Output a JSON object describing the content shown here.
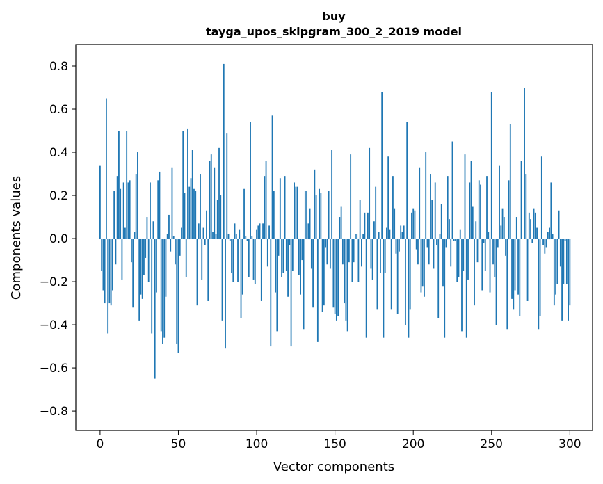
{
  "chart_data": {
    "type": "bar",
    "title": "buy",
    "subtitle": "tayga_upos_skipgram_300_2_2019 model",
    "xlabel": "Vector components",
    "ylabel": "Components values",
    "xlim": [
      -15.5,
      314.5
    ],
    "ylim": [
      -0.89,
      0.9
    ],
    "xticks": [
      0,
      50,
      100,
      150,
      200,
      250,
      300
    ],
    "xtick_labels": [
      "0",
      "50",
      "100",
      "150",
      "200",
      "250",
      "300"
    ],
    "yticks": [
      0.8,
      0.6,
      0.4,
      0.2,
      0.0,
      -0.2,
      -0.4,
      -0.6,
      -0.8
    ],
    "ytick_labels": [
      "0.8",
      "0.6",
      "0.4",
      "0.2",
      "0.0",
      "−0.2",
      "−0.4",
      "−0.6",
      "−0.8"
    ],
    "grid": false,
    "bar_color": "#1f77b4",
    "x_start": 0,
    "values": [
      0.34,
      -0.15,
      -0.24,
      -0.3,
      0.65,
      -0.44,
      -0.3,
      -0.31,
      -0.24,
      0.22,
      -0.12,
      0.29,
      0.5,
      0.23,
      -0.19,
      0.26,
      0.05,
      0.5,
      0.26,
      0.27,
      -0.11,
      -0.32,
      0.03,
      0.3,
      0.4,
      -0.38,
      -0.26,
      -0.28,
      -0.17,
      -0.09,
      0.1,
      -0.2,
      0.26,
      -0.44,
      0.08,
      -0.65,
      -0.25,
      0.27,
      0.31,
      -0.43,
      -0.49,
      -0.46,
      -0.27,
      0.02,
      0.11,
      -0.06,
      0.33,
      0.01,
      -0.12,
      -0.49,
      -0.53,
      -0.08,
      0.05,
      0.5,
      0.21,
      -0.18,
      0.51,
      0.24,
      0.28,
      0.41,
      0.23,
      0.22,
      -0.31,
      0.07,
      0.3,
      -0.19,
      0.05,
      -0.03,
      0.13,
      -0.29,
      0.36,
      0.39,
      0.03,
      0.33,
      0.02,
      0.18,
      0.42,
      0.2,
      -0.38,
      0.81,
      -0.51,
      0.49,
      0.02,
      -0.01,
      -0.16,
      -0.2,
      0.07,
      0.02,
      -0.2,
      0.04,
      -0.37,
      -0.26,
      0.23,
      0.01,
      -0.01,
      -0.18,
      0.54,
      0.01,
      -0.19,
      -0.21,
      0.04,
      0.06,
      0.07,
      -0.29,
      0.07,
      0.29,
      0.36,
      -0.13,
      0.06,
      -0.5,
      0.57,
      0.22,
      -0.25,
      -0.43,
      -0.08,
      0.28,
      -0.18,
      -0.16,
      0.29,
      -0.15,
      -0.27,
      -0.03,
      -0.5,
      -0.15,
      0.26,
      0.24,
      0.24,
      -0.17,
      -0.26,
      -0.1,
      -0.42,
      0.22,
      0.22,
      0.07,
      0.14,
      -0.14,
      -0.32,
      0.32,
      0.2,
      -0.48,
      0.23,
      0.21,
      -0.34,
      -0.31,
      -0.04,
      -0.12,
      0.22,
      -0.14,
      0.41,
      -0.32,
      -0.35,
      -0.38,
      -0.36,
      0.1,
      0.15,
      -0.12,
      -0.3,
      -0.38,
      -0.43,
      -0.11,
      0.39,
      -0.2,
      -0.11,
      0.02,
      0.02,
      -0.2,
      0.18,
      -0.13,
      0.02,
      0.12,
      -0.46,
      0.12,
      0.42,
      -0.14,
      -0.19,
      0.08,
      0.24,
      -0.33,
      0.03,
      -0.16,
      0.68,
      -0.46,
      -0.16,
      0.05,
      0.38,
      0.04,
      -0.33,
      0.29,
      0.14,
      -0.07,
      -0.35,
      -0.06,
      0.06,
      0.03,
      0.06,
      -0.4,
      0.54,
      -0.46,
      -0.33,
      0.12,
      0.14,
      0.13,
      -0.05,
      -0.12,
      0.33,
      -0.25,
      -0.22,
      -0.27,
      0.4,
      -0.04,
      -0.12,
      0.3,
      0.18,
      -0.14,
      0.26,
      -0.03,
      -0.37,
      0.02,
      0.16,
      -0.22,
      -0.46,
      -0.04,
      0.29,
      0.09,
      -0.13,
      0.45,
      -0.01,
      -0.01,
      -0.2,
      -0.18,
      0.04,
      -0.43,
      -0.15,
      0.39,
      -0.46,
      -0.19,
      0.26,
      0.36,
      0.15,
      -0.31,
      0.08,
      -0.11,
      0.27,
      0.25,
      -0.24,
      -0.02,
      -0.15,
      0.29,
      0.03,
      -0.25,
      0.68,
      -0.12,
      -0.18,
      -0.4,
      -0.04,
      0.34,
      0.06,
      0.14,
      0.1,
      -0.08,
      -0.42,
      0.27,
      0.53,
      -0.28,
      -0.33,
      -0.24,
      0.1,
      -0.26,
      -0.36,
      0.36,
      0.0,
      0.7,
      0.3,
      -0.29,
      0.12,
      0.09,
      -0.02,
      0.14,
      0.12,
      0.05,
      -0.42,
      -0.36,
      0.38,
      -0.03,
      -0.07,
      -0.04,
      0.03,
      0.05,
      0.26,
      0.02,
      -0.31,
      -0.26,
      -0.21,
      0.13,
      -0.13,
      -0.38,
      -0.21,
      -0.01,
      -0.21,
      -0.38,
      -0.31
    ]
  }
}
